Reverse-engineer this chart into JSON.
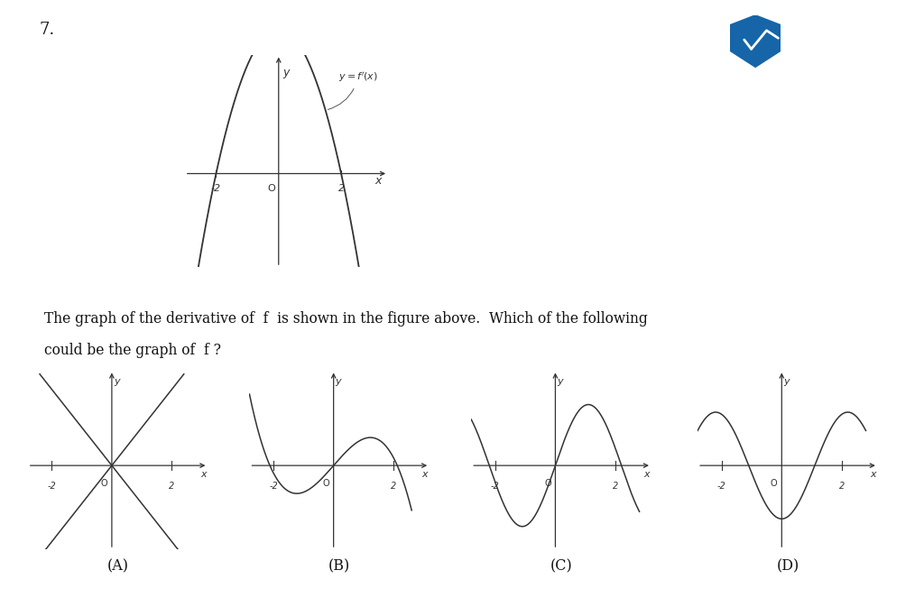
{
  "background_color": "#ffffff",
  "question_number": "7.",
  "text_line1": "The graph of the derivative of  f  is shown in the figure above.  Which of the following",
  "text_line2": "could be the graph of  f ?",
  "labels": [
    "(A)",
    "(B)",
    "(C)",
    "(D)"
  ],
  "tick_color": "#333333",
  "axis_color": "#333333",
  "curve_color": "#333333",
  "logo_color": "#1565a8"
}
